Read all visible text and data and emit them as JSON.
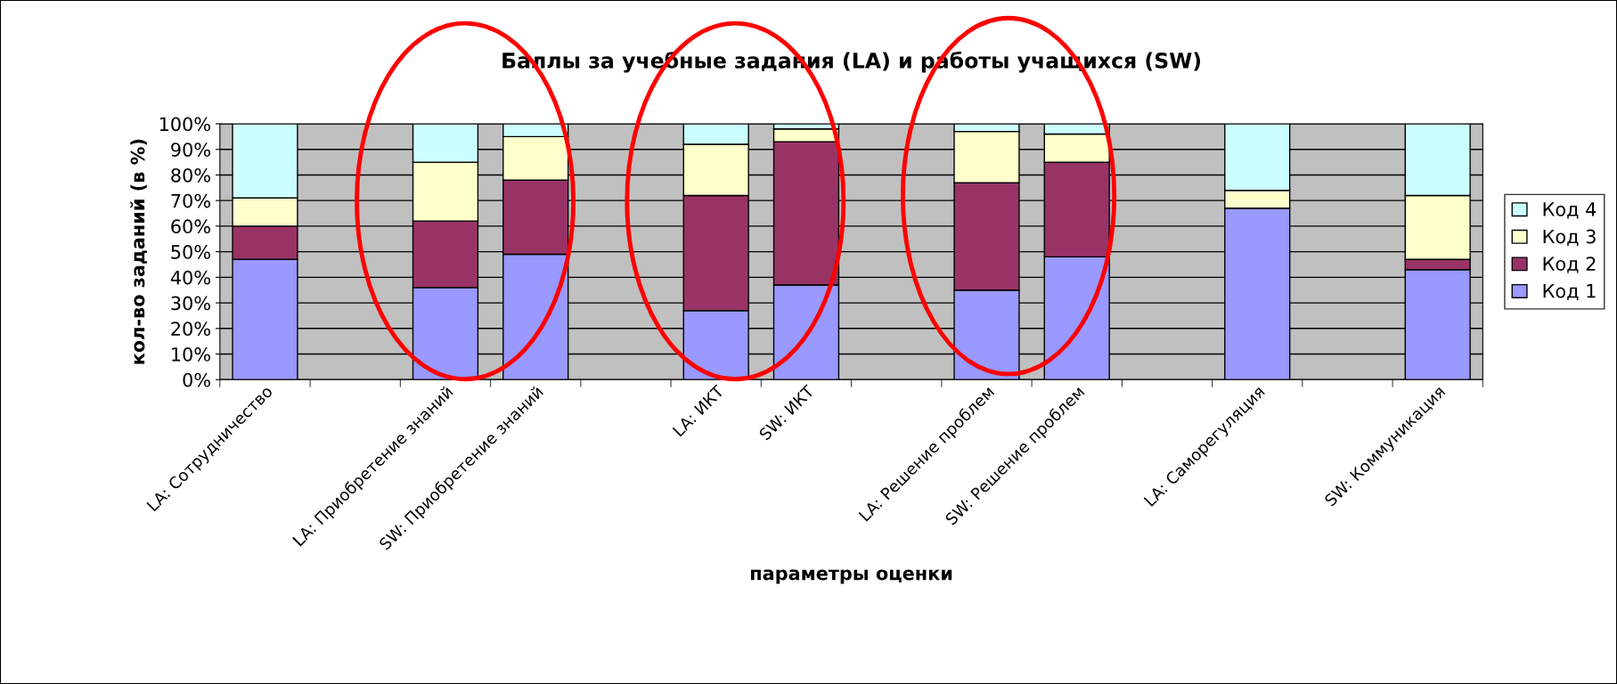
{
  "chart_data": {
    "type": "bar",
    "stacked": true,
    "title": "Баллы за учебные задания (LA) и работы учащихся (SW)",
    "xlabel": "параметры оценки",
    "ylabel": "кол-во заданий (в %)",
    "categories": [
      "LA: Сотрудничество",
      null,
      "LA: Приобретение знаний",
      "SW: Приобретение знаний",
      null,
      "LA: ИКТ",
      "SW: ИКТ",
      null,
      "LA: Решение проблем",
      "SW: Решение проблем",
      null,
      "LA: Саморегуляция",
      null,
      "SW: Коммуникация"
    ],
    "series": [
      {
        "name": "Код 1",
        "color": "#9999ff",
        "values": [
          47,
          null,
          36,
          49,
          null,
          27,
          37,
          null,
          35,
          48,
          null,
          67,
          null,
          43
        ]
      },
      {
        "name": "Код 2",
        "color": "#993366",
        "values": [
          13,
          null,
          26,
          29,
          null,
          45,
          56,
          null,
          42,
          37,
          null,
          0,
          null,
          4
        ]
      },
      {
        "name": "Код 3",
        "color": "#ffffcc",
        "values": [
          11,
          null,
          23,
          17,
          null,
          20,
          5,
          null,
          20,
          11,
          null,
          7,
          null,
          25
        ]
      },
      {
        "name": "Код 4",
        "color": "#ccffff",
        "values": [
          29,
          null,
          15,
          5,
          null,
          8,
          2,
          null,
          3,
          4,
          null,
          26,
          null,
          28
        ]
      }
    ],
    "ylim": [
      0,
      100
    ],
    "yticks": [
      {
        "value": 0,
        "label": "0%"
      },
      {
        "value": 10,
        "label": "10%"
      },
      {
        "value": 20,
        "label": "20%"
      },
      {
        "value": 30,
        "label": "30%"
      },
      {
        "value": 40,
        "label": "40%"
      },
      {
        "value": 50,
        "label": "50%"
      },
      {
        "value": 60,
        "label": "60%"
      },
      {
        "value": 70,
        "label": "70%"
      },
      {
        "value": 80,
        "label": "80%"
      },
      {
        "value": 90,
        "label": "90%"
      },
      {
        "value": 100,
        "label": "100%"
      }
    ],
    "grid": "y",
    "legend": "right"
  }
}
